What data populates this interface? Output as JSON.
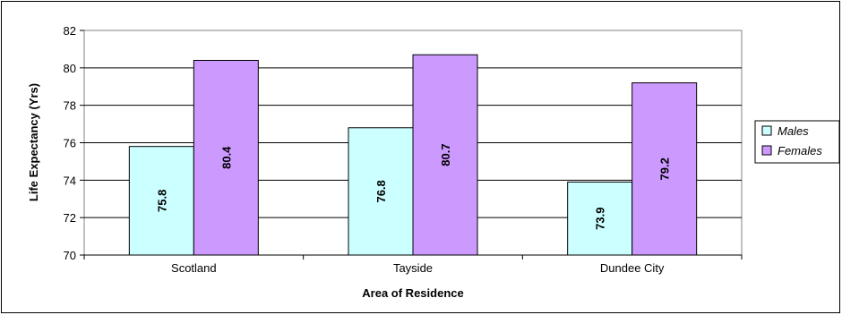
{
  "chart_data": {
    "type": "bar",
    "categories": [
      "Scotland",
      "Tayside",
      "Dundee City"
    ],
    "series": [
      {
        "name": "Males",
        "values": [
          75.8,
          76.8,
          73.9
        ],
        "labels": [
          "75.8",
          "76.8",
          "73.9"
        ],
        "color": "#ccffff"
      },
      {
        "name": "Females",
        "values": [
          80.4,
          80.7,
          79.2
        ],
        "labels": [
          "80.4",
          "80.7",
          "79.2"
        ],
        "color": "#cc99ff"
      }
    ],
    "xlabel": "Area of Residence",
    "ylabel": "Life Expectancy (Yrs)",
    "ylim": [
      70,
      82
    ],
    "yticks": [
      70,
      72,
      74,
      76,
      78,
      80,
      82
    ],
    "grid": true,
    "legend": "right"
  }
}
